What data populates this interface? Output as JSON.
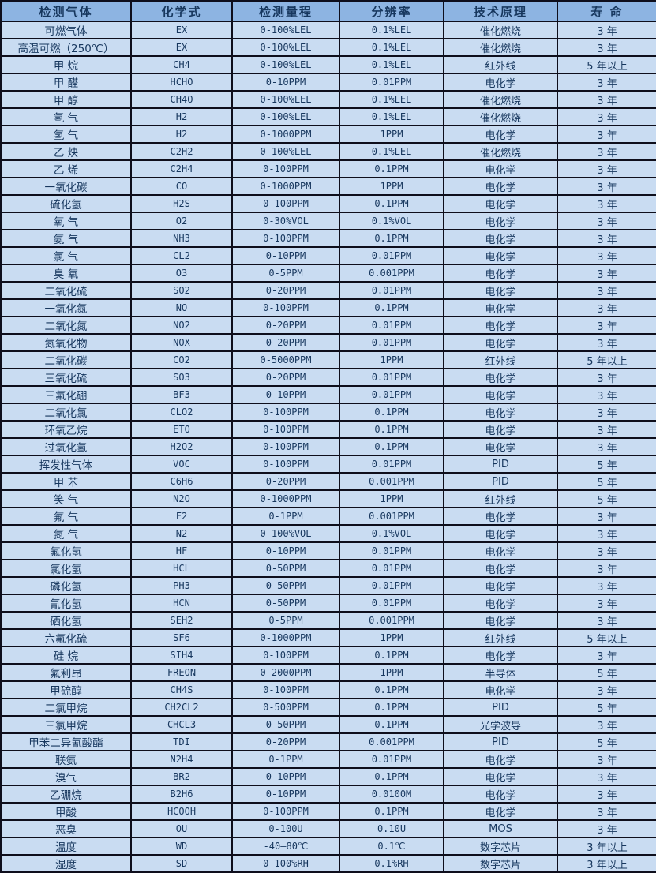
{
  "colors": {
    "header_background": "#8db4e2",
    "row_background": "#c9dcf2",
    "border": "#0e0e1c",
    "text": "#17375e"
  },
  "table": {
    "columns": [
      "检测气体",
      "化学式",
      "检测量程",
      "分辨率",
      "技术原理",
      "寿 命"
    ],
    "rows": [
      [
        "可燃气体",
        "EX",
        "0-100%LEL",
        "0.1%LEL",
        "催化燃烧",
        "3 年"
      ],
      [
        "高温可燃（250℃）",
        "EX",
        "0-100%LEL",
        "0.1%LEL",
        "催化燃烧",
        "3 年"
      ],
      [
        "甲 烷",
        "CH4",
        "0-100%LEL",
        "0.1%LEL",
        "红外线",
        "5 年以上"
      ],
      [
        "甲 醛",
        "HCHO",
        "0-10PPM",
        "0.01PPM",
        "电化学",
        "3 年"
      ],
      [
        "甲 醇",
        "CH4O",
        "0-100%LEL",
        "0.1%LEL",
        "催化燃烧",
        "3 年"
      ],
      [
        "氢 气",
        "H2",
        "0-100%LEL",
        "0.1%LEL",
        "催化燃烧",
        "3 年"
      ],
      [
        "氢 气",
        "H2",
        "0-1000PPM",
        "1PPM",
        "电化学",
        "3 年"
      ],
      [
        "乙 炔",
        "C2H2",
        "0-100%LEL",
        "0.1%LEL",
        "催化燃烧",
        "3 年"
      ],
      [
        "乙 烯",
        "C2H4",
        "0-100PPM",
        "0.1PPM",
        "电化学",
        "3 年"
      ],
      [
        "一氧化碳",
        "CO",
        "0-1000PPM",
        "1PPM",
        "电化学",
        "3 年"
      ],
      [
        "硫化氢",
        "H2S",
        "0-100PPM",
        "0.1PPM",
        "电化学",
        "3 年"
      ],
      [
        "氧 气",
        "O2",
        "0-30%VOL",
        "0.1%VOL",
        "电化学",
        "3 年"
      ],
      [
        "氨 气",
        "NH3",
        "0-100PPM",
        "0.1PPM",
        "电化学",
        "3 年"
      ],
      [
        "氯 气",
        "CL2",
        "0-10PPM",
        "0.01PPM",
        "电化学",
        "3 年"
      ],
      [
        "臭 氧",
        "O3",
        "0-5PPM",
        "0.001PPM",
        "电化学",
        "3 年"
      ],
      [
        "二氧化硫",
        "SO2",
        "0-20PPM",
        "0.01PPM",
        "电化学",
        "3 年"
      ],
      [
        "一氧化氮",
        "NO",
        "0-100PPM",
        "0.1PPM",
        "电化学",
        "3 年"
      ],
      [
        "二氧化氮",
        "NO2",
        "0-20PPM",
        "0.01PPM",
        "电化学",
        "3 年"
      ],
      [
        "氮氧化物",
        "NOX",
        "0-20PPM",
        "0.01PPM",
        "电化学",
        "3 年"
      ],
      [
        "二氧化碳",
        "CO2",
        "0-5000PPM",
        "1PPM",
        "红外线",
        "5 年以上"
      ],
      [
        "三氧化硫",
        "SO3",
        "0-20PPM",
        "0.01PPM",
        "电化学",
        "3 年"
      ],
      [
        "三氟化硼",
        "BF3",
        "0-10PPM",
        "0.01PPM",
        "电化学",
        "3 年"
      ],
      [
        "二氧化氯",
        "CLO2",
        "0-100PPM",
        "0.1PPM",
        "电化学",
        "3 年"
      ],
      [
        "环氧乙烷",
        "ETO",
        "0-100PPM",
        "0.1PPM",
        "电化学",
        "3 年"
      ],
      [
        "过氧化氢",
        "H2O2",
        "0-100PPM",
        "0.1PPM",
        "电化学",
        "3 年"
      ],
      [
        "挥发性气体",
        "VOC",
        "0-100PPM",
        "0.01PPM",
        "PID",
        "5 年"
      ],
      [
        "甲 苯",
        "C6H6",
        "0-20PPM",
        "0.001PPM",
        "PID",
        "5 年"
      ],
      [
        "笑 气",
        "N2O",
        "0-1000PPM",
        "1PPM",
        "红外线",
        "5 年"
      ],
      [
        "氟 气",
        "F2",
        "0-1PPM",
        "0.001PPM",
        "电化学",
        "3 年"
      ],
      [
        "氮 气",
        "N2",
        "0-100%VOL",
        "0.1%VOL",
        "电化学",
        "3 年"
      ],
      [
        "氟化氢",
        "HF",
        "0-10PPM",
        "0.01PPM",
        "电化学",
        "3 年"
      ],
      [
        "氯化氢",
        "HCL",
        "0-50PPM",
        "0.01PPM",
        "电化学",
        "3 年"
      ],
      [
        "磷化氢",
        "PH3",
        "0-50PPM",
        "0.01PPM",
        "电化学",
        "3 年"
      ],
      [
        "氰化氢",
        "HCN",
        "0-50PPM",
        "0.01PPM",
        "电化学",
        "3 年"
      ],
      [
        "硒化氢",
        "SEH2",
        "0-5PPM",
        "0.001PPM",
        "电化学",
        "3 年"
      ],
      [
        "六氟化硫",
        "SF6",
        "0-1000PPM",
        "1PPM",
        "红外线",
        "5 年以上"
      ],
      [
        "硅 烷",
        "SIH4",
        "0-100PPM",
        "0.1PPM",
        "电化学",
        "3 年"
      ],
      [
        "氟利昂",
        "FREON",
        "0-2000PPM",
        "1PPM",
        "半导体",
        "5 年"
      ],
      [
        "甲硫醇",
        "CH4S",
        "0-100PPM",
        "0.1PPM",
        "电化学",
        "3 年"
      ],
      [
        "二氯甲烷",
        "CH2CL2",
        "0-500PPM",
        "0.1PPM",
        "PID",
        "5 年"
      ],
      [
        "三氯甲烷",
        "CHCL3",
        "0-50PPM",
        "0.1PPM",
        "光学波导",
        "3 年"
      ],
      [
        "甲苯二异氰酸酯",
        "TDI",
        "0-20PPM",
        "0.001PPM",
        "PID",
        "5 年"
      ],
      [
        "联氨",
        "N2H4",
        "0-1PPM",
        "0.01PPM",
        "电化学",
        "3 年"
      ],
      [
        "溴气",
        "BR2",
        "0-10PPM",
        "0.1PPM",
        "电化学",
        "3 年"
      ],
      [
        "乙硼烷",
        "B2H6",
        "0-10PPM",
        "0.0100M",
        "电化学",
        "3 年"
      ],
      [
        "甲酸",
        "HCOOH",
        "0-100PPM",
        "0.1PPM",
        "电化学",
        "3 年"
      ],
      [
        "恶臭",
        "OU",
        "0-100U",
        "0.10U",
        "MOS",
        "3 年"
      ],
      [
        "温度",
        "WD",
        "-40—80℃",
        "0.1℃",
        "数字芯片",
        "3 年以上"
      ],
      [
        "湿度",
        "SD",
        "0-100%RH",
        "0.1%RH",
        "数字芯片",
        "3 年以上"
      ]
    ]
  }
}
